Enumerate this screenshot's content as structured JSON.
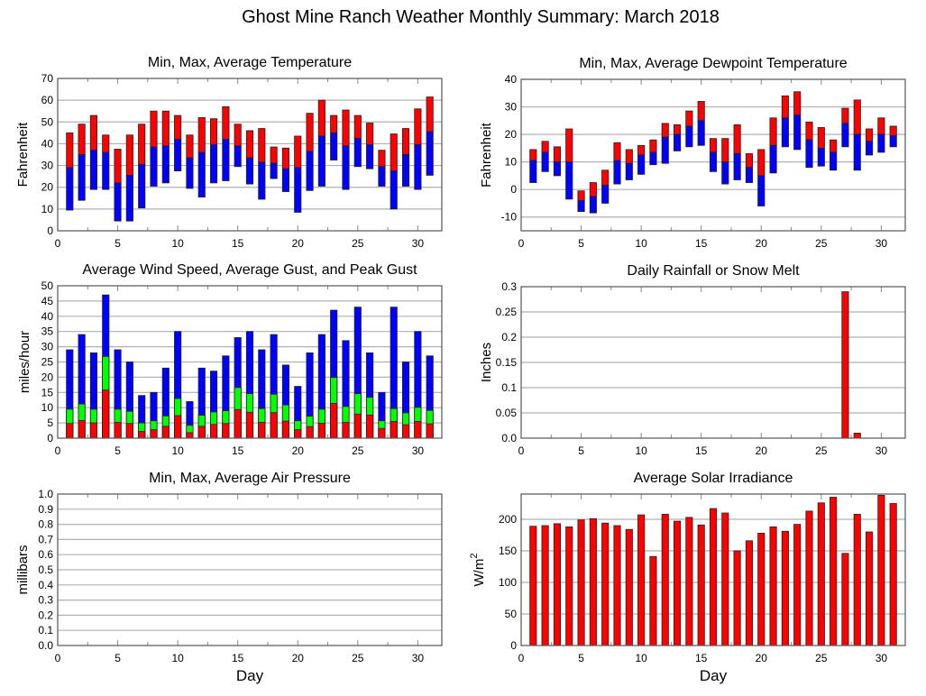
{
  "title": "Ghost Mine Ranch Weather Monthly Summary: March 2018",
  "colors": {
    "red": "#ff0000",
    "blue": "#0000ff",
    "green": "#00ff00",
    "grid": "#b0b0b0",
    "axis": "#555555"
  },
  "chart_data": [
    {
      "id": "temperature",
      "type": "bar",
      "subtype": "floating-range",
      "title": "Min, Max, Average Temperature",
      "xlabel": "",
      "ylabel": "Fahrenheit",
      "xlim": [
        0,
        32
      ],
      "ylim": [
        0,
        70
      ],
      "xticks": [
        0,
        5,
        10,
        15,
        20,
        25,
        30
      ],
      "yticks": [
        0,
        10,
        20,
        30,
        40,
        50,
        60,
        70
      ],
      "ytick_labels": [
        "0",
        "10",
        "20",
        "30",
        "40",
        "50",
        "60",
        "70"
      ],
      "grid": true,
      "x": [
        1,
        2,
        3,
        4,
        5,
        6,
        7,
        8,
        9,
        10,
        11,
        12,
        13,
        14,
        15,
        16,
        17,
        18,
        19,
        20,
        21,
        22,
        23,
        24,
        25,
        26,
        27,
        28,
        29,
        30,
        31
      ],
      "series": [
        {
          "name": "Min",
          "values": [
            9.5,
            14,
            19,
            19,
            4.5,
            4.5,
            10.5,
            20.5,
            22,
            27.5,
            19.5,
            15.5,
            22,
            23,
            29.5,
            21.5,
            14.5,
            24,
            18,
            8.5,
            18.5,
            20.5,
            32.5,
            19,
            29.5,
            28.5,
            20.5,
            10,
            20.5,
            19,
            25.5
          ]
        },
        {
          "name": "Average",
          "values": [
            29,
            35,
            37,
            36,
            22,
            25.5,
            30.5,
            38.5,
            39,
            42,
            33.5,
            36,
            39.5,
            42,
            39,
            33.5,
            31.5,
            31,
            28.5,
            29,
            36.5,
            43.5,
            45,
            39,
            42.5,
            39.5,
            29.5,
            27.5,
            35,
            39.5,
            45.5
          ]
        },
        {
          "name": "Max",
          "values": [
            45,
            49,
            53,
            44,
            37.5,
            44,
            49,
            55,
            55,
            53,
            44,
            52,
            51.5,
            57,
            49,
            46,
            47,
            38.5,
            38,
            43.5,
            54,
            60,
            53,
            55.5,
            53,
            49.5,
            37,
            44.5,
            47,
            56,
            61.5
          ]
        }
      ]
    },
    {
      "id": "dewpoint",
      "type": "bar",
      "subtype": "floating-range",
      "title": "Min, Max, Average Dewpoint Temperature",
      "xlabel": "",
      "ylabel": "Fahrenheit",
      "xlim": [
        0,
        32
      ],
      "ylim": [
        -15,
        40
      ],
      "xticks": [
        0,
        5,
        10,
        15,
        20,
        25,
        30
      ],
      "yticks": [
        -10,
        0,
        10,
        20,
        30,
        40
      ],
      "ytick_labels": [
        "-10",
        "0",
        "10",
        "20",
        "30",
        "40"
      ],
      "grid": true,
      "x": [
        1,
        2,
        3,
        4,
        5,
        6,
        7,
        8,
        9,
        10,
        11,
        12,
        13,
        14,
        15,
        16,
        17,
        18,
        19,
        20,
        21,
        22,
        23,
        24,
        25,
        26,
        27,
        28,
        29,
        30,
        31
      ],
      "series": [
        {
          "name": "Min",
          "values": [
            2.5,
            6.5,
            5,
            -3.5,
            -8,
            -8.5,
            -5,
            2,
            3.5,
            5.5,
            9,
            9.5,
            14,
            15.5,
            16,
            6.5,
            2,
            3.5,
            2.5,
            -6,
            6,
            15.5,
            14.5,
            8,
            8.5,
            7,
            15.5,
            7,
            12.5,
            13.5,
            15.5
          ]
        },
        {
          "name": "Average",
          "values": [
            10.5,
            13.5,
            10,
            10,
            -4,
            -2.5,
            1.5,
            10.5,
            9.5,
            12.5,
            13.5,
            19,
            20,
            23,
            25,
            13.5,
            10,
            13,
            8,
            5,
            16,
            26,
            27,
            18,
            15,
            13.5,
            24,
            20,
            17.5,
            20,
            19.5
          ]
        },
        {
          "name": "Max",
          "values": [
            14.5,
            17.5,
            15.5,
            22,
            -0.5,
            2.5,
            7,
            17,
            14.5,
            16,
            18,
            24,
            23.5,
            28.5,
            32,
            18.5,
            18.5,
            23.5,
            13,
            14.5,
            26,
            34,
            35.5,
            24.5,
            22.5,
            18,
            29.5,
            32.5,
            22,
            26,
            23
          ]
        }
      ]
    },
    {
      "id": "wind",
      "type": "bar",
      "subtype": "overlaid",
      "title": "Average Wind Speed, Average Gust, and Peak Gust",
      "xlabel": "",
      "ylabel": "miles/hour",
      "xlim": [
        0,
        32
      ],
      "ylim": [
        0,
        50
      ],
      "xticks": [
        0,
        5,
        10,
        15,
        20,
        25,
        30
      ],
      "yticks": [
        0,
        5,
        10,
        15,
        20,
        25,
        30,
        35,
        40,
        45,
        50
      ],
      "ytick_labels": [
        "0",
        "5",
        "10",
        "15",
        "20",
        "25",
        "30",
        "35",
        "40",
        "45",
        "50"
      ],
      "grid": true,
      "x": [
        1,
        2,
        3,
        4,
        5,
        6,
        7,
        8,
        9,
        10,
        11,
        12,
        13,
        14,
        15,
        16,
        17,
        18,
        19,
        20,
        21,
        22,
        23,
        24,
        25,
        26,
        27,
        28,
        29,
        30,
        31
      ],
      "series": [
        {
          "name": "Peak Gust",
          "color": "blue",
          "values": [
            29,
            34,
            28,
            47,
            29,
            25,
            14,
            15,
            23,
            35,
            12,
            23,
            22,
            27,
            33,
            35,
            29,
            34,
            24,
            17,
            28,
            34,
            42,
            32,
            43,
            28,
            15,
            43,
            25,
            35,
            27
          ]
        },
        {
          "name": "Average Gust",
          "color": "green",
          "values": [
            9.5,
            11.2,
            9.5,
            26.8,
            9.5,
            8.8,
            5,
            5.7,
            7.3,
            13,
            4.2,
            7.5,
            8.6,
            9,
            16.6,
            14.6,
            9.7,
            14.4,
            10.9,
            5.7,
            7.2,
            9.5,
            19.9,
            10.4,
            14.6,
            13.4,
            5.7,
            9.7,
            8.3,
            10.1,
            9.1
          ]
        },
        {
          "name": "Average Wind Speed",
          "color": "red",
          "values": [
            4.8,
            5.8,
            5,
            15.8,
            5.2,
            4.8,
            2.2,
            2.8,
            3.9,
            7.4,
            1.8,
            3.9,
            4.5,
            4.8,
            9.4,
            8.5,
            5.2,
            8.4,
            5.6,
            2.8,
            3.8,
            4.9,
            11.4,
            5.2,
            7.9,
            7.6,
            3.2,
            5.5,
            4.4,
            5.5,
            4.7
          ]
        }
      ]
    },
    {
      "id": "rainfall",
      "type": "bar",
      "title": "Daily Rainfall or Snow Melt",
      "xlabel": "",
      "ylabel": "Inches",
      "xlim": [
        0,
        32
      ],
      "ylim": [
        0,
        0.3
      ],
      "xticks": [
        0,
        5,
        10,
        15,
        20,
        25,
        30
      ],
      "yticks": [
        0,
        0.05,
        0.1,
        0.15,
        0.2,
        0.25,
        0.3
      ],
      "ytick_labels": [
        "0.0",
        "0.05",
        "0.1",
        "0.15",
        "0.2",
        "0.25",
        "0.3"
      ],
      "grid": true,
      "x": [
        1,
        2,
        3,
        4,
        5,
        6,
        7,
        8,
        9,
        10,
        11,
        12,
        13,
        14,
        15,
        16,
        17,
        18,
        19,
        20,
        21,
        22,
        23,
        24,
        25,
        26,
        27,
        28,
        29,
        30,
        31
      ],
      "series": [
        {
          "name": "Rainfall",
          "color": "red",
          "values": [
            0,
            0,
            0,
            0,
            0,
            0,
            0,
            0,
            0,
            0,
            0,
            0,
            0,
            0,
            0,
            0,
            0,
            0,
            0,
            0,
            0,
            0,
            0,
            0,
            0,
            0,
            0.29,
            0.01,
            0,
            0,
            0
          ]
        }
      ]
    },
    {
      "id": "pressure",
      "type": "bar",
      "subtype": "floating-range",
      "title": "Min, Max, Average Air Pressure",
      "xlabel": "Day",
      "ylabel": "millibars",
      "xlim": [
        0,
        32
      ],
      "ylim": [
        0,
        1
      ],
      "xticks": [
        0,
        5,
        10,
        15,
        20,
        25,
        30
      ],
      "yticks": [
        0,
        0.1,
        0.2,
        0.3,
        0.4,
        0.5,
        0.6,
        0.7,
        0.8,
        0.9,
        1.0
      ],
      "ytick_labels": [
        "0.0",
        "0.1",
        "0.2",
        "0.3",
        "0.4",
        "0.5",
        "0.6",
        "0.7",
        "0.8",
        "0.9",
        "1.0"
      ],
      "grid": true,
      "x": [],
      "series": []
    },
    {
      "id": "solar",
      "type": "bar",
      "title": "Average Solar Irradiance",
      "xlabel": "Day",
      "ylabel": "W/m2",
      "ylabel_base": "W/m",
      "ylabel_sup": "2",
      "xlim": [
        0,
        32
      ],
      "ylim": [
        0,
        240
      ],
      "xticks": [
        0,
        5,
        10,
        15,
        20,
        25,
        30
      ],
      "yticks": [
        0,
        50,
        100,
        150,
        200
      ],
      "ytick_labels": [
        "0",
        "50",
        "100",
        "150",
        "200"
      ],
      "grid": true,
      "x": [
        1,
        2,
        3,
        4,
        5,
        6,
        7,
        8,
        9,
        10,
        11,
        12,
        13,
        14,
        15,
        16,
        17,
        18,
        19,
        20,
        21,
        22,
        23,
        24,
        25,
        26,
        27,
        28,
        29,
        30,
        31
      ],
      "series": [
        {
          "name": "Solar Irradiance",
          "color": "red",
          "values": [
            189,
            190,
            193,
            188,
            199,
            201,
            194,
            190,
            184,
            207,
            141,
            208,
            197,
            203,
            191,
            217,
            210,
            150,
            166,
            178,
            188,
            181,
            192,
            213,
            226,
            235,
            146,
            208,
            180,
            238,
            225
          ]
        }
      ]
    }
  ]
}
